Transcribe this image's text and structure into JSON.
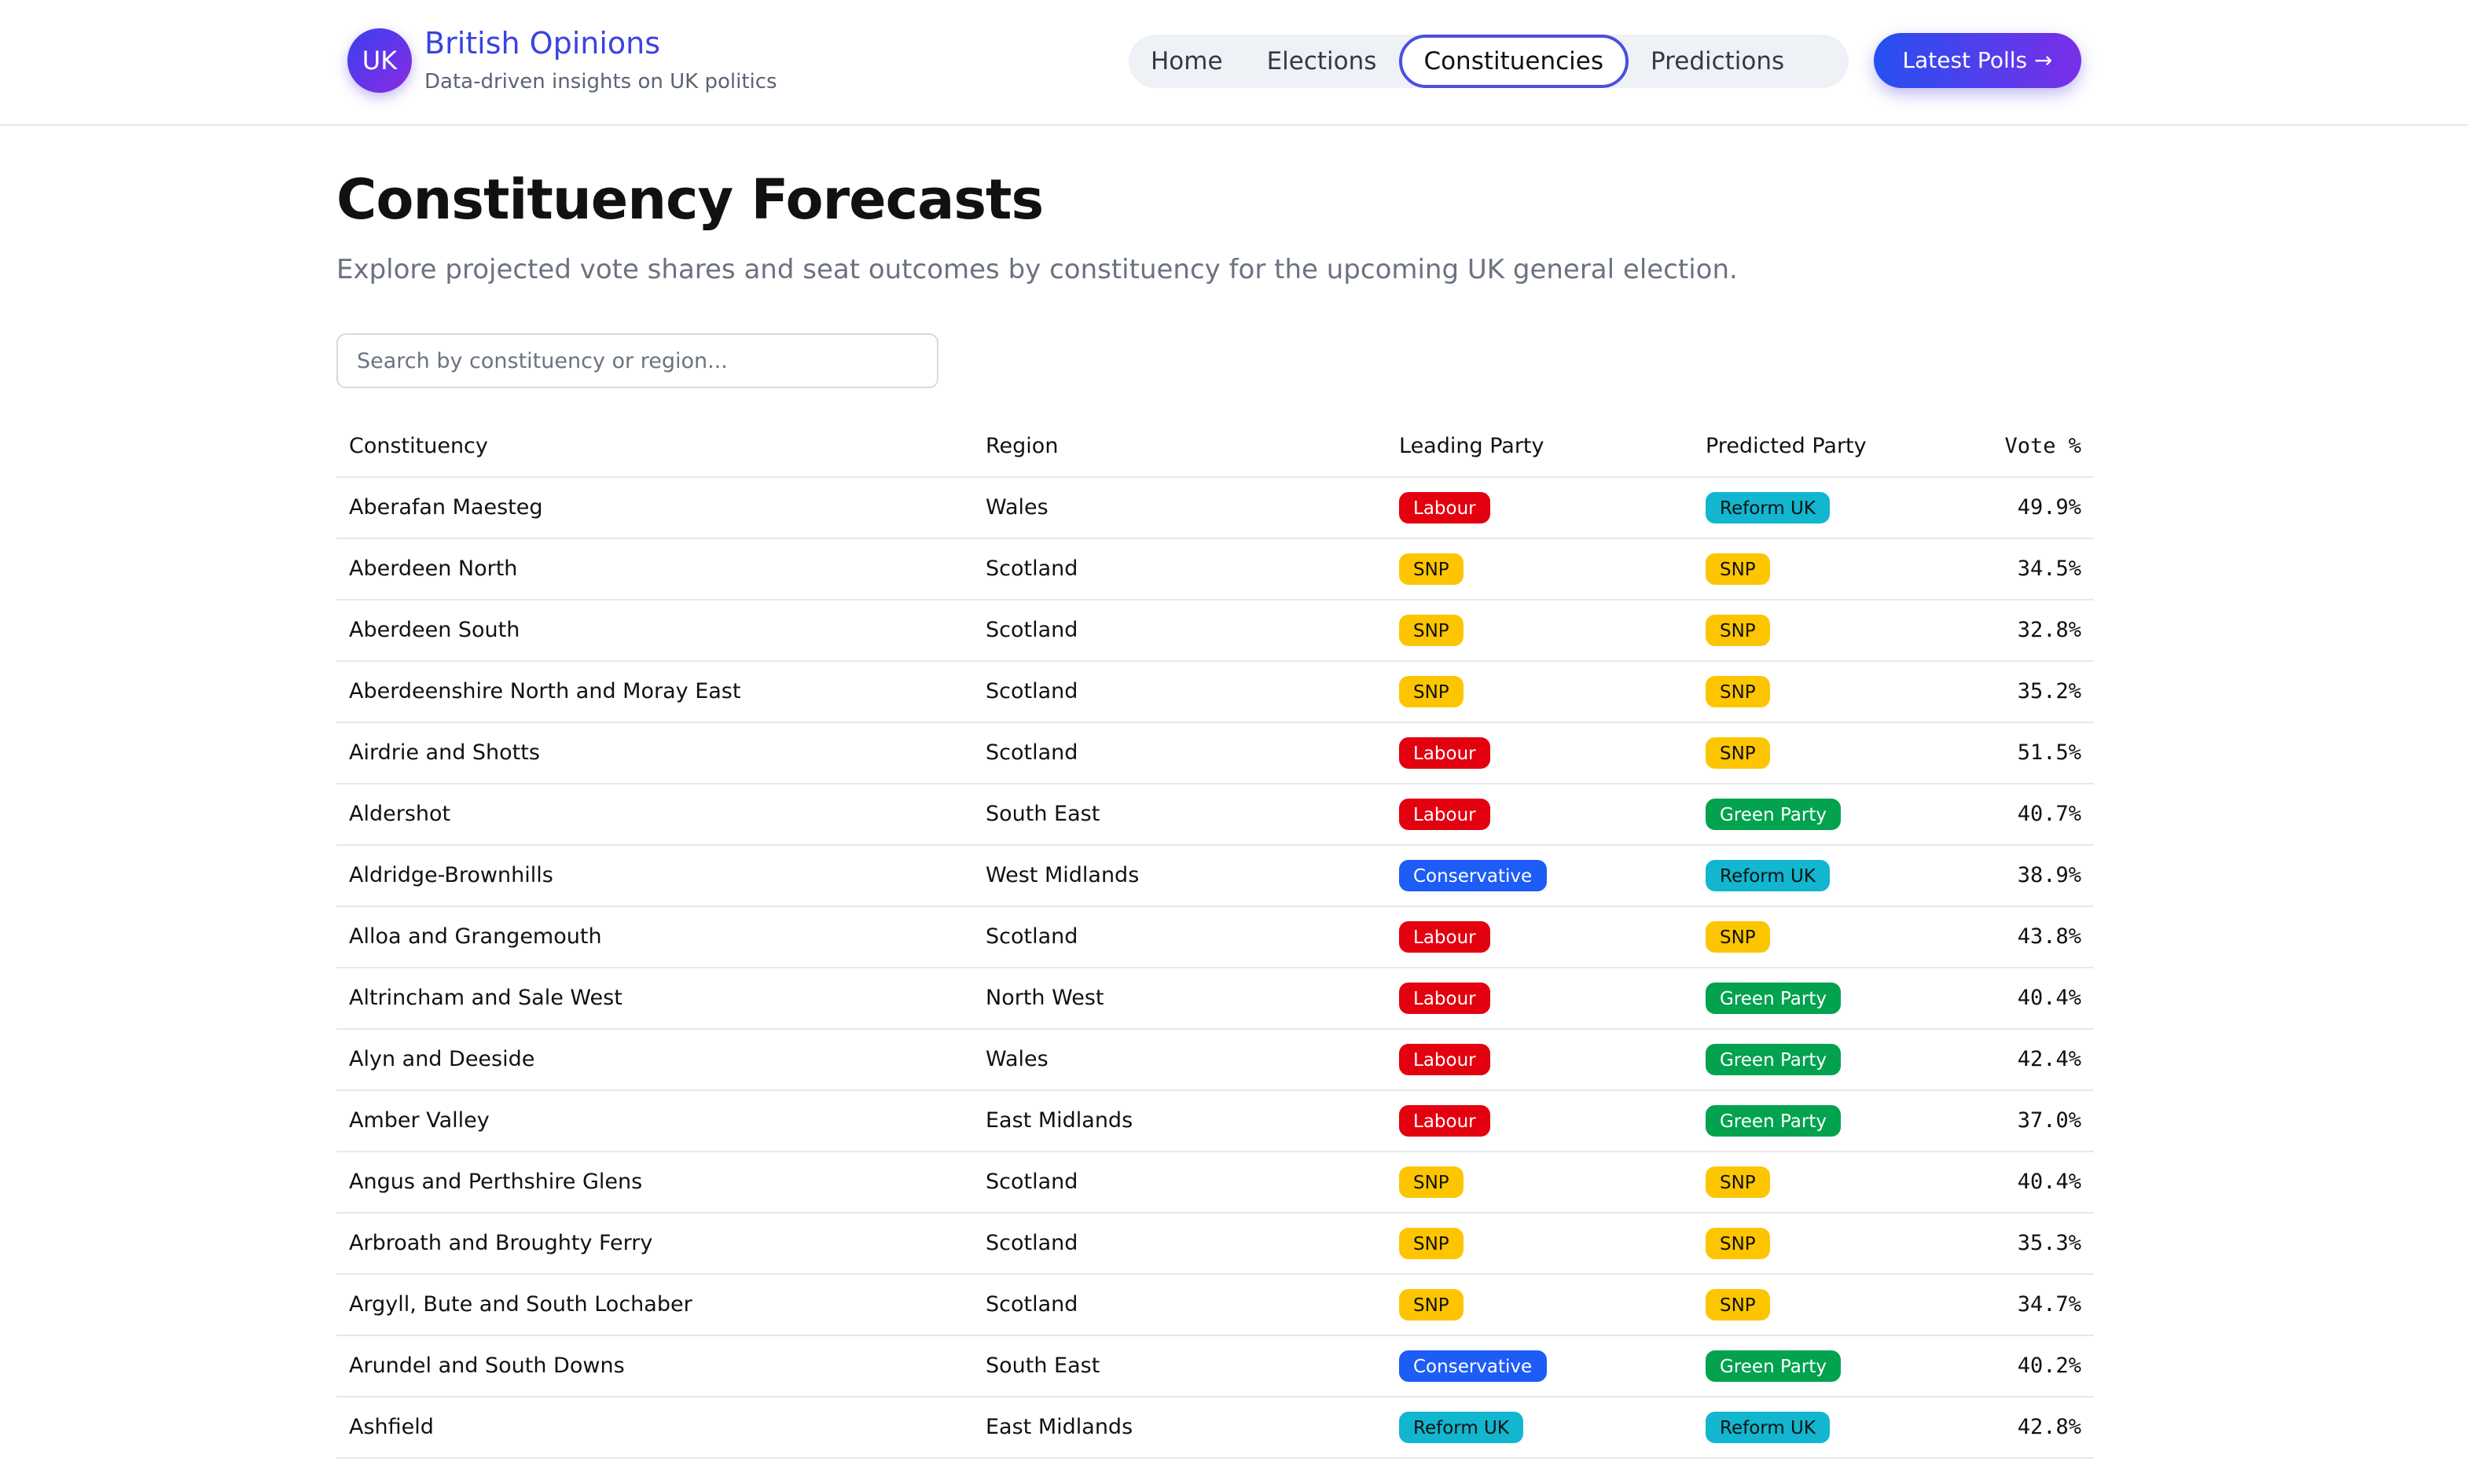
{
  "header": {
    "logo": "UK",
    "title": "British Opinions",
    "tagline": "Data-driven insights on UK politics",
    "nav": [
      "Home",
      "Elections",
      "Constituencies",
      "Predictions"
    ],
    "active_nav": 2,
    "cta": "Latest Polls →"
  },
  "page": {
    "title": "Constituency Forecasts",
    "subtitle": "Explore projected vote shares and seat outcomes by constituency for the upcoming UK general election.",
    "search_placeholder": "Search by constituency or region..."
  },
  "parties": {
    "Labour": {
      "color": "#e3000f",
      "text": "#ffffff"
    },
    "SNP": {
      "color": "#fdc500",
      "text": "#111111"
    },
    "Reform UK": {
      "color": "#12b6cf",
      "text": "#111111"
    },
    "Green Party": {
      "color": "#02a24f",
      "text": "#ffffff"
    },
    "Conservative": {
      "color": "#1d5cf5",
      "text": "#ffffff"
    }
  },
  "table": {
    "columns": [
      "Constituency",
      "Region",
      "Leading Party",
      "Predicted Party",
      "Vote %"
    ],
    "rows": [
      [
        "Aberafan Maesteg",
        "Wales",
        "Labour",
        "Reform UK",
        "49.9%"
      ],
      [
        "Aberdeen North",
        "Scotland",
        "SNP",
        "SNP",
        "34.5%"
      ],
      [
        "Aberdeen South",
        "Scotland",
        "SNP",
        "SNP",
        "32.8%"
      ],
      [
        "Aberdeenshire North and Moray East",
        "Scotland",
        "SNP",
        "SNP",
        "35.2%"
      ],
      [
        "Airdrie and Shotts",
        "Scotland",
        "Labour",
        "SNP",
        "51.5%"
      ],
      [
        "Aldershot",
        "South East",
        "Labour",
        "Green Party",
        "40.7%"
      ],
      [
        "Aldridge-Brownhills",
        "West Midlands",
        "Conservative",
        "Reform UK",
        "38.9%"
      ],
      [
        "Alloa and Grangemouth",
        "Scotland",
        "Labour",
        "SNP",
        "43.8%"
      ],
      [
        "Altrincham and Sale West",
        "North West",
        "Labour",
        "Green Party",
        "40.4%"
      ],
      [
        "Alyn and Deeside",
        "Wales",
        "Labour",
        "Green Party",
        "42.4%"
      ],
      [
        "Amber Valley",
        "East Midlands",
        "Labour",
        "Green Party",
        "37.0%"
      ],
      [
        "Angus and Perthshire Glens",
        "Scotland",
        "SNP",
        "SNP",
        "40.4%"
      ],
      [
        "Arbroath and Broughty Ferry",
        "Scotland",
        "SNP",
        "SNP",
        "35.3%"
      ],
      [
        "Argyll, Bute and South Lochaber",
        "Scotland",
        "SNP",
        "SNP",
        "34.7%"
      ],
      [
        "Arundel and South Downs",
        "South East",
        "Conservative",
        "Green Party",
        "40.2%"
      ],
      [
        "Ashfield",
        "East Midlands",
        "Reform UK",
        "Reform UK",
        "42.8%"
      ]
    ]
  }
}
